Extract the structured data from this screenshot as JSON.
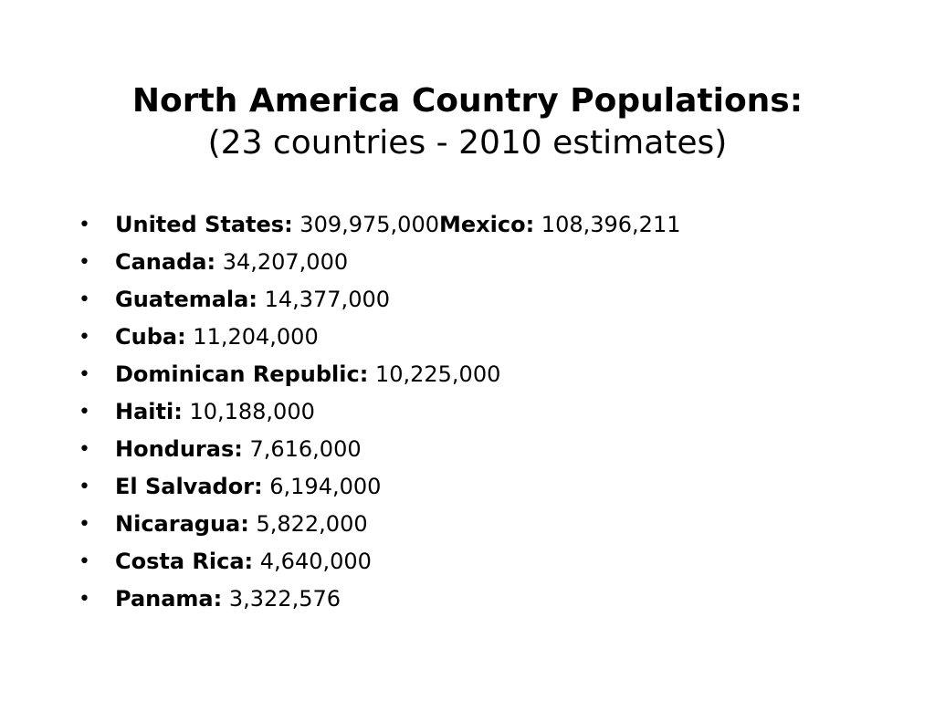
{
  "slide": {
    "title": "North America Country Populations:",
    "subtitle": "(23 countries - 2010 estimates)",
    "bullet_glyph": "•",
    "items": [
      {
        "segments": [
          {
            "label": "United States:",
            "value": " 309,975,000"
          },
          {
            "label": "Mexico:",
            "value": " 108,396,211"
          }
        ]
      },
      {
        "segments": [
          {
            "label": "Canada:",
            "value": " 34,207,000"
          }
        ]
      },
      {
        "segments": [
          {
            "label": "Guatemala:",
            "value": " 14,377,000"
          }
        ]
      },
      {
        "segments": [
          {
            "label": "Cuba:",
            "value": " 11,204,000"
          }
        ]
      },
      {
        "segments": [
          {
            "label": "Dominican Republic:",
            "value": " 10,225,000"
          }
        ]
      },
      {
        "segments": [
          {
            "label": "Haiti:",
            "value": " 10,188,000"
          }
        ]
      },
      {
        "segments": [
          {
            "label": "Honduras:",
            "value": " 7,616,000"
          }
        ]
      },
      {
        "segments": [
          {
            "label": "El Salvador:",
            "value": " 6,194,000"
          }
        ]
      },
      {
        "segments": [
          {
            "label": "Nicaragua:",
            "value": " 5,822,000"
          }
        ]
      },
      {
        "segments": [
          {
            "label": "Costa Rica:",
            "value": " 4,640,000"
          }
        ]
      },
      {
        "segments": [
          {
            "label": "Panama:",
            "value": " 3,322,576"
          }
        ]
      }
    ]
  }
}
